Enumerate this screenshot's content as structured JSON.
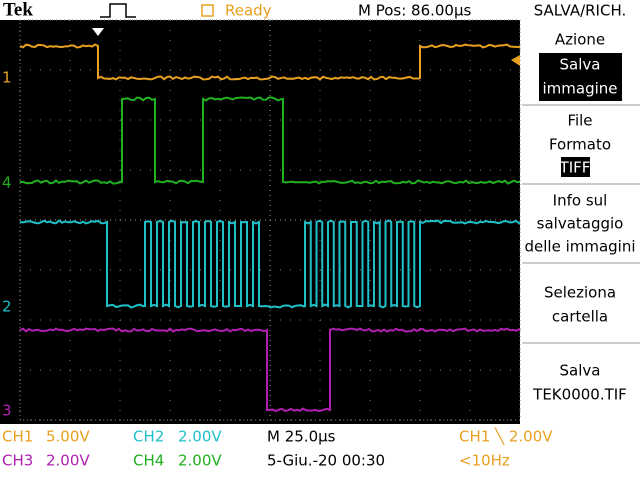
{
  "header": {
    "brand": "Tek",
    "status": "Ready",
    "position": "M Pos: 86.00µs",
    "menu_title": "SALVA/RICH."
  },
  "menu": [
    {
      "lines": [
        "Azione"
      ],
      "highlight": [
        "Salva",
        "immagine"
      ]
    },
    {
      "lines": [
        "File",
        "Formato"
      ],
      "highlight": [
        "TIFF"
      ]
    },
    {
      "lines": [
        "Info sul",
        "salvataggio",
        "delle immagini"
      ]
    },
    {
      "lines": [
        "Seleziona",
        "cartella"
      ]
    },
    {
      "lines": [
        "Salva",
        "TEK0000.TIF"
      ]
    }
  ],
  "markers": [
    "1",
    "4",
    "2",
    "3"
  ],
  "footer": {
    "ch1": {
      "channel": "CH1",
      "scale": "5.00V"
    },
    "ch2": {
      "channel": "CH2",
      "scale": "2.00V"
    },
    "ch3": {
      "channel": "CH3",
      "scale": "2.00V"
    },
    "ch4": {
      "channel": "CH4",
      "scale": "2.00V"
    },
    "timebase": "M 25.0µs",
    "date": "5-Giu.-20 00:30",
    "trigger": "CH1 ╲ 2.00V",
    "frequency": "<10Hz"
  }
}
